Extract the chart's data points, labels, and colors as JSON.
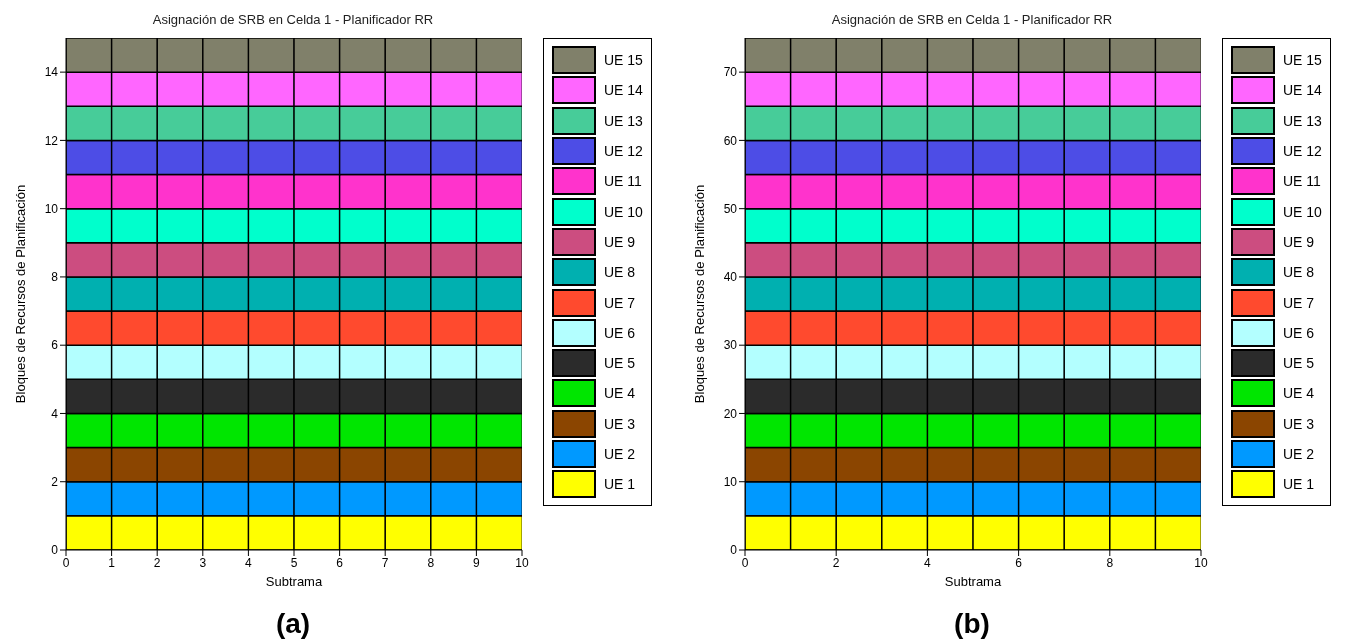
{
  "chart_data": [
    {
      "type": "bar",
      "title": "Asignación de SRB en Celda 1 - Planificador RR",
      "xlabel": "Subtrama",
      "ylabel": "Bloques de Recursos de Planificación",
      "annotations": [
        "(a)"
      ],
      "stacked": true,
      "legend": "right",
      "x": [
        0.5,
        1.5,
        2.5,
        3.5,
        4.5,
        5.5,
        6.5,
        7.5,
        8.5,
        9.5
      ],
      "xlim": [
        0,
        10
      ],
      "xticks": [
        0,
        1,
        2,
        3,
        4,
        5,
        6,
        7,
        8,
        9,
        10
      ],
      "ylim": [
        0,
        15
      ],
      "yticks": [
        0,
        2,
        4,
        6,
        8,
        10,
        12,
        14
      ],
      "series": [
        {
          "name": "UE 1",
          "color": "#ffff00",
          "values": [
            1,
            1,
            1,
            1,
            1,
            1,
            1,
            1,
            1,
            1
          ]
        },
        {
          "name": "UE 2",
          "color": "#0099ff",
          "values": [
            1,
            1,
            1,
            1,
            1,
            1,
            1,
            1,
            1,
            1
          ]
        },
        {
          "name": "UE 3",
          "color": "#8b4500",
          "values": [
            1,
            1,
            1,
            1,
            1,
            1,
            1,
            1,
            1,
            1
          ]
        },
        {
          "name": "UE 4",
          "color": "#00e600",
          "values": [
            1,
            1,
            1,
            1,
            1,
            1,
            1,
            1,
            1,
            1
          ]
        },
        {
          "name": "UE 5",
          "color": "#2b2b2b",
          "values": [
            1,
            1,
            1,
            1,
            1,
            1,
            1,
            1,
            1,
            1
          ]
        },
        {
          "name": "UE 6",
          "color": "#b3ffff",
          "values": [
            1,
            1,
            1,
            1,
            1,
            1,
            1,
            1,
            1,
            1
          ]
        },
        {
          "name": "UE 7",
          "color": "#ff4a2e",
          "values": [
            1,
            1,
            1,
            1,
            1,
            1,
            1,
            1,
            1,
            1
          ]
        },
        {
          "name": "UE 8",
          "color": "#00b0b0",
          "values": [
            1,
            1,
            1,
            1,
            1,
            1,
            1,
            1,
            1,
            1
          ]
        },
        {
          "name": "UE 9",
          "color": "#cc4d80",
          "values": [
            1,
            1,
            1,
            1,
            1,
            1,
            1,
            1,
            1,
            1
          ]
        },
        {
          "name": "UE 10",
          "color": "#00ffcc",
          "values": [
            1,
            1,
            1,
            1,
            1,
            1,
            1,
            1,
            1,
            1
          ]
        },
        {
          "name": "UE 11",
          "color": "#ff33cc",
          "values": [
            1,
            1,
            1,
            1,
            1,
            1,
            1,
            1,
            1,
            1
          ]
        },
        {
          "name": "UE 12",
          "color": "#4d4de6",
          "values": [
            1,
            1,
            1,
            1,
            1,
            1,
            1,
            1,
            1,
            1
          ]
        },
        {
          "name": "UE 13",
          "color": "#47cc99",
          "values": [
            1,
            1,
            1,
            1,
            1,
            1,
            1,
            1,
            1,
            1
          ]
        },
        {
          "name": "UE 14",
          "color": "#ff66ff",
          "values": [
            1,
            1,
            1,
            1,
            1,
            1,
            1,
            1,
            1,
            1
          ]
        },
        {
          "name": "UE 15",
          "color": "#80806a",
          "values": [
            1,
            1,
            1,
            1,
            1,
            1,
            1,
            1,
            1,
            1
          ]
        }
      ]
    },
    {
      "type": "bar",
      "title": "Asignación de SRB en Celda 1 - Planificador RR",
      "xlabel": "Subtrama",
      "ylabel": "Bloques de Recursos de Planificación",
      "annotations": [
        "(b)"
      ],
      "stacked": true,
      "legend": "right",
      "x": [
        0.5,
        1.5,
        2.5,
        3.5,
        4.5,
        5.5,
        6.5,
        7.5,
        8.5,
        9.5
      ],
      "xlim": [
        0,
        10
      ],
      "xticks": [
        0,
        2,
        4,
        6,
        8,
        10
      ],
      "ylim": [
        0,
        75
      ],
      "yticks": [
        0,
        10,
        20,
        30,
        40,
        50,
        60,
        70
      ],
      "series": [
        {
          "name": "UE 1",
          "color": "#ffff00",
          "values": [
            5,
            5,
            5,
            5,
            5,
            5,
            5,
            5,
            5,
            5
          ]
        },
        {
          "name": "UE 2",
          "color": "#0099ff",
          "values": [
            5,
            5,
            5,
            5,
            5,
            5,
            5,
            5,
            5,
            5
          ]
        },
        {
          "name": "UE 3",
          "color": "#8b4500",
          "values": [
            5,
            5,
            5,
            5,
            5,
            5,
            5,
            5,
            5,
            5
          ]
        },
        {
          "name": "UE 4",
          "color": "#00e600",
          "values": [
            5,
            5,
            5,
            5,
            5,
            5,
            5,
            5,
            5,
            5
          ]
        },
        {
          "name": "UE 5",
          "color": "#2b2b2b",
          "values": [
            5,
            5,
            5,
            5,
            5,
            5,
            5,
            5,
            5,
            5
          ]
        },
        {
          "name": "UE 6",
          "color": "#b3ffff",
          "values": [
            5,
            5,
            5,
            5,
            5,
            5,
            5,
            5,
            5,
            5
          ]
        },
        {
          "name": "UE 7",
          "color": "#ff4a2e",
          "values": [
            5,
            5,
            5,
            5,
            5,
            5,
            5,
            5,
            5,
            5
          ]
        },
        {
          "name": "UE 8",
          "color": "#00b0b0",
          "values": [
            5,
            5,
            5,
            5,
            5,
            5,
            5,
            5,
            5,
            5
          ]
        },
        {
          "name": "UE 9",
          "color": "#cc4d80",
          "values": [
            5,
            5,
            5,
            5,
            5,
            5,
            5,
            5,
            5,
            5
          ]
        },
        {
          "name": "UE 10",
          "color": "#00ffcc",
          "values": [
            5,
            5,
            5,
            5,
            5,
            5,
            5,
            5,
            5,
            5
          ]
        },
        {
          "name": "UE 11",
          "color": "#ff33cc",
          "values": [
            5,
            5,
            5,
            5,
            5,
            5,
            5,
            5,
            5,
            5
          ]
        },
        {
          "name": "UE 12",
          "color": "#4d4de6",
          "values": [
            5,
            5,
            5,
            5,
            5,
            5,
            5,
            5,
            5,
            5
          ]
        },
        {
          "name": "UE 13",
          "color": "#47cc99",
          "values": [
            5,
            5,
            5,
            5,
            5,
            5,
            5,
            5,
            5,
            5
          ]
        },
        {
          "name": "UE 14",
          "color": "#ff66ff",
          "values": [
            5,
            5,
            5,
            5,
            5,
            5,
            5,
            5,
            5,
            5
          ]
        },
        {
          "name": "UE 15",
          "color": "#80806a",
          "values": [
            5,
            5,
            5,
            5,
            5,
            5,
            5,
            5,
            5,
            5
          ]
        }
      ]
    }
  ]
}
